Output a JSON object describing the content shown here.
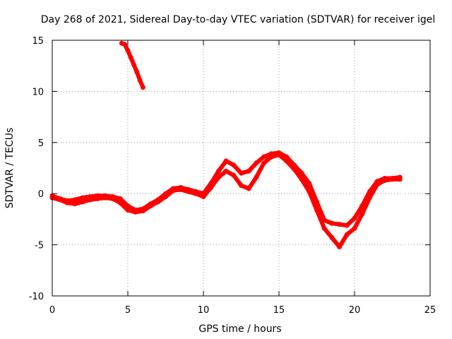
{
  "chart_data": {
    "type": "line",
    "title": "Day 268 of 2021, Sidereal Day-to-day VTEC variation (SDTVAR) for receiver igel",
    "xlabel": "GPS time / hours",
    "ylabel": "SDTVAR / TECUs",
    "xlim": [
      0,
      25
    ],
    "ylim": [
      -10,
      15
    ],
    "xticks": [
      0,
      5,
      10,
      15,
      20,
      25
    ],
    "yticks": [
      -10,
      -5,
      0,
      5,
      10,
      15
    ],
    "xtick_labels": [
      "0",
      "5",
      "10",
      "15",
      "20",
      "25"
    ],
    "ytick_labels": [
      "-10",
      "-5",
      "0",
      "5",
      "10",
      "15"
    ],
    "grid": true,
    "series_color": "#ff0000",
    "series": [
      {
        "name": "segment-1",
        "x": [
          4.6,
          4.8,
          5.0,
          5.2,
          5.4,
          5.6,
          5.8,
          6.0
        ],
        "y": [
          14.7,
          14.6,
          14.0,
          13.3,
          12.6,
          11.9,
          11.1,
          10.4
        ]
      },
      {
        "name": "segment-2",
        "x": [
          0.0,
          0.5,
          1.0,
          1.5,
          2.0,
          2.5,
          3.0,
          3.5,
          4.0,
          4.5,
          5.0,
          5.5,
          6.0,
          6.5,
          7.0,
          7.5,
          8.0,
          8.5,
          9.0,
          9.5,
          10.0,
          10.5,
          11.0,
          11.5,
          12.0,
          12.5,
          13.0,
          13.5,
          14.0,
          14.5,
          15.0,
          15.5,
          16.0,
          16.5,
          17.0,
          17.5,
          18.0,
          18.5,
          19.0,
          19.5,
          20.0,
          20.5,
          21.0,
          21.5,
          22.0,
          22.5,
          23.0
        ],
        "y": [
          -0.2,
          -0.5,
          -0.7,
          -0.6,
          -0.4,
          -0.3,
          -0.2,
          -0.2,
          -0.3,
          -0.5,
          -1.2,
          -1.6,
          -1.5,
          -1.0,
          -0.6,
          0.0,
          0.5,
          0.6,
          0.4,
          0.2,
          0.0,
          1.0,
          2.2,
          3.2,
          2.8,
          2.0,
          2.2,
          3.0,
          3.6,
          3.9,
          4.0,
          3.6,
          2.8,
          2.0,
          1.0,
          -0.8,
          -2.6,
          -2.9,
          -3.0,
          -3.1,
          -2.4,
          -1.2,
          0.2,
          1.2,
          1.5,
          1.5,
          1.6
        ]
      },
      {
        "name": "segment-3",
        "x": [
          0.0,
          0.5,
          1.0,
          1.5,
          2.0,
          2.5,
          3.0,
          3.5,
          4.0,
          4.5,
          5.0,
          5.5,
          6.0,
          6.5,
          7.0,
          7.5,
          8.0,
          8.5,
          9.0,
          9.5,
          10.0,
          10.5,
          11.0,
          11.5,
          12.0,
          12.5,
          13.0,
          13.5,
          14.0,
          14.5,
          15.0,
          15.5,
          16.0,
          16.5,
          17.0,
          17.5,
          18.0,
          18.5,
          19.0,
          19.5,
          20.0,
          20.5,
          21.0,
          21.5,
          22.0,
          22.5,
          23.0
        ],
        "y": [
          -0.4,
          -0.6,
          -0.9,
          -1.0,
          -0.8,
          -0.6,
          -0.5,
          -0.4,
          -0.5,
          -0.9,
          -1.6,
          -1.8,
          -1.7,
          -1.2,
          -0.8,
          -0.3,
          0.3,
          0.4,
          0.2,
          0.0,
          -0.3,
          0.6,
          1.6,
          2.2,
          1.8,
          0.8,
          0.5,
          1.6,
          3.0,
          3.6,
          3.8,
          3.2,
          2.4,
          1.4,
          0.2,
          -1.6,
          -3.4,
          -4.3,
          -5.2,
          -4.0,
          -3.4,
          -2.0,
          -0.4,
          0.9,
          1.3,
          1.4,
          1.4
        ]
      }
    ]
  }
}
